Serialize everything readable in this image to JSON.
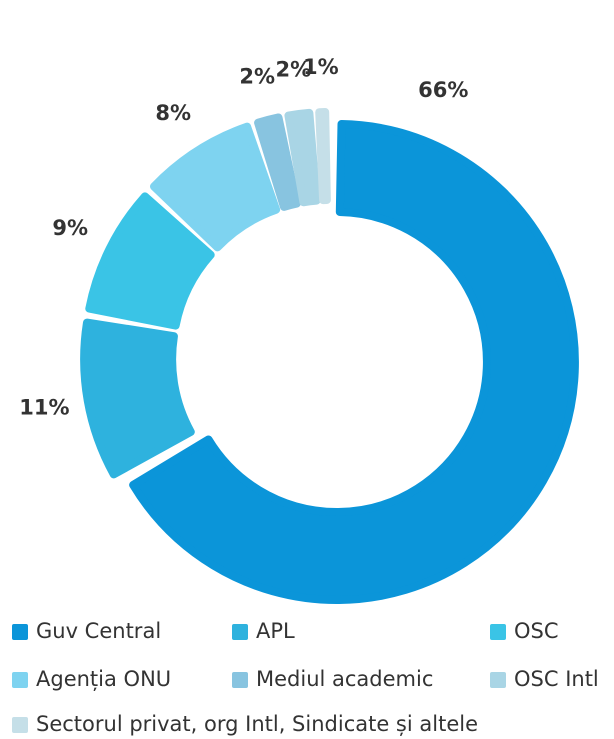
{
  "chart_data": {
    "type": "donut",
    "categories": [
      "Guv Central",
      "APL",
      "OSC",
      "Agenția ONU",
      "Mediul academic",
      "OSC Intl",
      "Sectorul privat, org Intl, Sindicate și altele"
    ],
    "values": [
      66,
      11,
      9,
      8,
      2,
      2,
      1
    ],
    "value_labels": [
      "66%",
      "11%",
      "9%",
      "8%",
      "2%",
      "2%",
      "1%"
    ],
    "colors": [
      "#0b95d9",
      "#2eb2de",
      "#3ac4e6",
      "#7ed3f0",
      "#88c4e0",
      "#a9d5e5",
      "#c5dfe8"
    ],
    "legend": "bottom"
  }
}
